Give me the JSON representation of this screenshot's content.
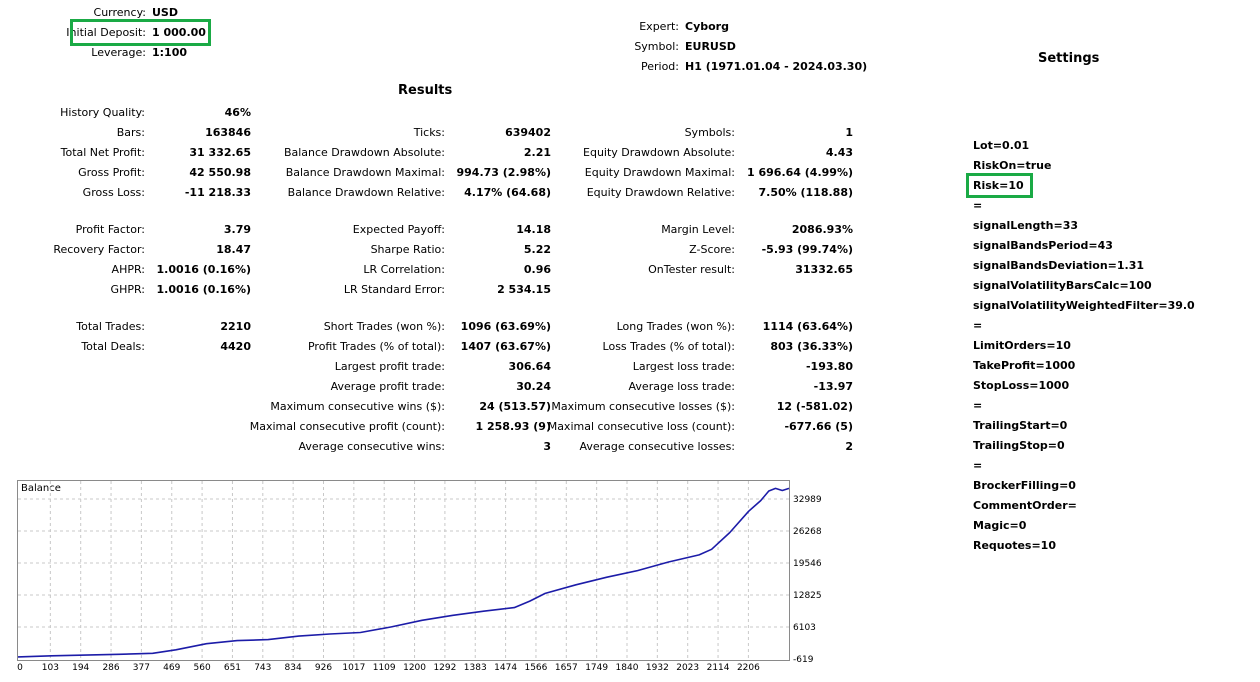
{
  "header": {
    "currency_label": "Currency:",
    "currency": "USD",
    "deposit_label": "Initial Deposit:",
    "deposit": "1 000.00",
    "leverage_label": "Leverage:",
    "leverage": "1:100",
    "expert_label": "Expert:",
    "expert": "Cyborg",
    "symbol_label": "Symbol:",
    "symbol": "EURUSD",
    "period_label": "Period:",
    "period": "H1 (1971.01.04 - 2024.03.30)"
  },
  "results_title": "Results",
  "settings_title": "Settings",
  "results": {
    "col1": [
      {
        "label": "History Quality:",
        "value": "46%"
      },
      {
        "label": "Bars:",
        "value": "163846"
      },
      {
        "label": "Total Net Profit:",
        "value": "31 332.65"
      },
      {
        "label": "Gross Profit:",
        "value": "42 550.98"
      },
      {
        "label": "Gross Loss:",
        "value": "-11 218.33"
      },
      {
        "label": "Profit Factor:",
        "value": "3.79"
      },
      {
        "label": "Recovery Factor:",
        "value": "18.47"
      },
      {
        "label": "AHPR:",
        "value": "1.0016 (0.16%)"
      },
      {
        "label": "GHPR:",
        "value": "1.0016 (0.16%)"
      },
      {
        "label": "Total Trades:",
        "value": "2210"
      },
      {
        "label": "Total Deals:",
        "value": "4420"
      }
    ],
    "col2": [
      {
        "label": "Ticks:",
        "value": "639402"
      },
      {
        "label": "Balance Drawdown Absolute:",
        "value": "2.21"
      },
      {
        "label": "Balance Drawdown Maximal:",
        "value": "994.73 (2.98%)"
      },
      {
        "label": "Balance Drawdown Relative:",
        "value": "4.17% (64.68)"
      },
      {
        "label": "Expected Payoff:",
        "value": "14.18"
      },
      {
        "label": "Sharpe Ratio:",
        "value": "5.22"
      },
      {
        "label": "LR Correlation:",
        "value": "0.96"
      },
      {
        "label": "LR Standard Error:",
        "value": "2 534.15"
      },
      {
        "label": "Short Trades (won %):",
        "value": "1096 (63.69%)"
      },
      {
        "label": "Profit Trades (% of total):",
        "value": "1407 (63.67%)"
      },
      {
        "label": "Largest profit trade:",
        "value": "306.64"
      },
      {
        "label": "Average profit trade:",
        "value": "30.24"
      },
      {
        "label": "Maximum consecutive wins ($):",
        "value": "24 (513.57)"
      },
      {
        "label": "Maximal consecutive profit (count):",
        "value": "1 258.93 (9)"
      },
      {
        "label": "Average consecutive wins:",
        "value": "3"
      }
    ],
    "col3": [
      {
        "label": "Symbols:",
        "value": "1"
      },
      {
        "label": "Equity Drawdown Absolute:",
        "value": "4.43"
      },
      {
        "label": "Equity Drawdown Maximal:",
        "value": "1 696.64 (4.99%)"
      },
      {
        "label": "Equity Drawdown Relative:",
        "value": "7.50% (118.88)"
      },
      {
        "label": "Margin Level:",
        "value": "2086.93%"
      },
      {
        "label": "Z-Score:",
        "value": "-5.93 (99.74%)"
      },
      {
        "label": "OnTester result:",
        "value": "31332.65"
      },
      {
        "label": "Long Trades (won %):",
        "value": "1114 (63.64%)"
      },
      {
        "label": "Loss Trades (% of total):",
        "value": "803 (36.33%)"
      },
      {
        "label": "Largest loss trade:",
        "value": "-193.80"
      },
      {
        "label": "Average loss trade:",
        "value": "-13.97"
      },
      {
        "label": "Maximum consecutive losses ($):",
        "value": "12 (-581.02)"
      },
      {
        "label": "Maximal consecutive loss (count):",
        "value": "-677.66 (5)"
      },
      {
        "label": "Average consecutive losses:",
        "value": "2"
      }
    ]
  },
  "settings": [
    "Lot=0.01",
    "RiskOn=true",
    "Risk=10",
    "=",
    "signalLength=33",
    "signalBandsPeriod=43",
    "signalBandsDeviation=1.31",
    "signalVolatilityBarsCalc=100",
    "signalVolatilityWeightedFilter=39.0",
    "=",
    "LimitOrders=10",
    "TakeProfit=1000",
    "StopLoss=1000",
    "=",
    "TrailingStart=0",
    "TrailingStop=0",
    "=",
    "BrockerFilling=0",
    "CommentOrder=",
    "Magic=0",
    "Requotes=10"
  ],
  "highlight_color": "#1aaa45",
  "chart_data": {
    "type": "line",
    "title": "Balance",
    "line_color": "#1c1ca8",
    "x_ticks": [
      "0",
      "103",
      "194",
      "286",
      "377",
      "469",
      "560",
      "651",
      "743",
      "834",
      "926",
      "1017",
      "1109",
      "1200",
      "1292",
      "1383",
      "1474",
      "1566",
      "1657",
      "1749",
      "1840",
      "1932",
      "2023",
      "2114",
      "2206"
    ],
    "y_ticks": [
      "32989",
      "26268",
      "19546",
      "12825",
      "6103",
      "-619"
    ],
    "xlim": [
      0,
      2290
    ],
    "ylim": [
      -619,
      34664
    ],
    "series": [
      {
        "x": [
          0,
          100,
          200,
          300,
          400,
          469,
          560,
          651,
          743,
          834,
          926,
          1017,
          1109,
          1200,
          1292,
          1383,
          1474,
          1520,
          1566,
          1657,
          1749,
          1840,
          1932,
          2023,
          2060,
          2114,
          2170,
          2206,
          2230,
          2250,
          2270,
          2290
        ],
        "values": [
          0,
          200,
          350,
          500,
          700,
          1400,
          2600,
          3200,
          3400,
          4100,
          4500,
          4800,
          5900,
          7200,
          8200,
          9000,
          9700,
          11000,
          12500,
          14200,
          15700,
          17000,
          18700,
          20100,
          21200,
          24500,
          28700,
          30800,
          32700,
          33200,
          32800,
          33200
        ]
      }
    ]
  }
}
